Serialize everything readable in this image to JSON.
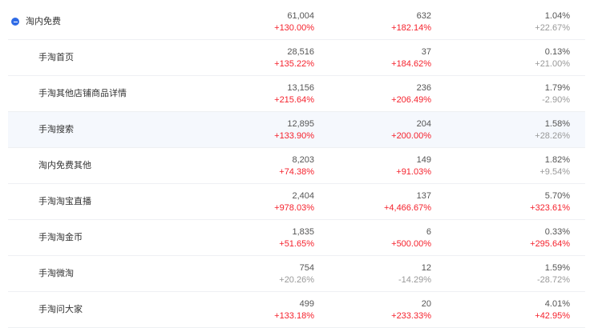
{
  "colors": {
    "up": "#f5222d",
    "neutral": "#999999",
    "toggle": "#2f6be6"
  },
  "rows": [
    {
      "name": "淘内免费",
      "level": "parent",
      "icon": "collapse-minus-icon",
      "cols": [
        {
          "value": "61,004",
          "change": "+130.00%",
          "tone": "up"
        },
        {
          "value": "632",
          "change": "+182.14%",
          "tone": "up"
        },
        {
          "value": "1.04%",
          "change": "+22.67%",
          "tone": "neutral"
        }
      ]
    },
    {
      "name": "手淘首页",
      "level": "child",
      "cols": [
        {
          "value": "28,516",
          "change": "+135.22%",
          "tone": "up"
        },
        {
          "value": "37",
          "change": "+184.62%",
          "tone": "up"
        },
        {
          "value": "0.13%",
          "change": "+21.00%",
          "tone": "neutral"
        }
      ]
    },
    {
      "name": "手淘其他店铺商品详情",
      "level": "child",
      "cols": [
        {
          "value": "13,156",
          "change": "+215.64%",
          "tone": "up"
        },
        {
          "value": "236",
          "change": "+206.49%",
          "tone": "up"
        },
        {
          "value": "1.79%",
          "change": "-2.90%",
          "tone": "neutral"
        }
      ]
    },
    {
      "name": "手淘搜索",
      "level": "child",
      "highlighted": true,
      "cols": [
        {
          "value": "12,895",
          "change": "+133.90%",
          "tone": "up"
        },
        {
          "value": "204",
          "change": "+200.00%",
          "tone": "up"
        },
        {
          "value": "1.58%",
          "change": "+28.26%",
          "tone": "neutral"
        }
      ]
    },
    {
      "name": "淘内免费其他",
      "level": "child",
      "cols": [
        {
          "value": "8,203",
          "change": "+74.38%",
          "tone": "up"
        },
        {
          "value": "149",
          "change": "+91.03%",
          "tone": "up"
        },
        {
          "value": "1.82%",
          "change": "+9.54%",
          "tone": "neutral"
        }
      ]
    },
    {
      "name": "手淘淘宝直播",
      "level": "child",
      "cols": [
        {
          "value": "2,404",
          "change": "+978.03%",
          "tone": "up"
        },
        {
          "value": "137",
          "change": "+4,466.67%",
          "tone": "up"
        },
        {
          "value": "5.70%",
          "change": "+323.61%",
          "tone": "up"
        }
      ]
    },
    {
      "name": "手淘淘金币",
      "level": "child",
      "cols": [
        {
          "value": "1,835",
          "change": "+51.65%",
          "tone": "up"
        },
        {
          "value": "6",
          "change": "+500.00%",
          "tone": "up"
        },
        {
          "value": "0.33%",
          "change": "+295.64%",
          "tone": "up"
        }
      ]
    },
    {
      "name": "手淘微淘",
      "level": "child",
      "cols": [
        {
          "value": "754",
          "change": "+20.26%",
          "tone": "neutral"
        },
        {
          "value": "12",
          "change": "-14.29%",
          "tone": "neutral"
        },
        {
          "value": "1.59%",
          "change": "-28.72%",
          "tone": "neutral"
        }
      ]
    },
    {
      "name": "手淘问大家",
      "level": "child",
      "cols": [
        {
          "value": "499",
          "change": "+133.18%",
          "tone": "up"
        },
        {
          "value": "20",
          "change": "+233.33%",
          "tone": "up"
        },
        {
          "value": "4.01%",
          "change": "+42.95%",
          "tone": "up"
        }
      ]
    }
  ]
}
